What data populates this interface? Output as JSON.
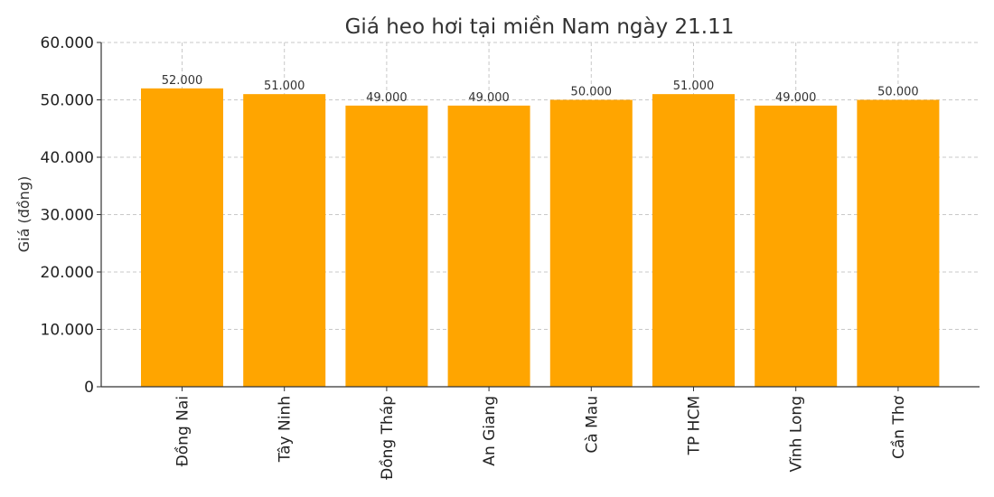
{
  "chart_data": {
    "type": "bar",
    "title": "Giá heo hơi tại miền Nam ngày 21.11",
    "xlabel": "",
    "ylabel": "Giá (đồng)",
    "ylim": [
      0,
      60000
    ],
    "yticks": [
      0,
      10000,
      20000,
      30000,
      40000,
      50000,
      60000
    ],
    "ytick_labels": [
      "0",
      "10.000",
      "20.000",
      "30.000",
      "40.000",
      "50.000",
      "60.000"
    ],
    "categories": [
      "Đồng Nai",
      "Tây Ninh",
      "Đồng Tháp",
      "An Giang",
      "Cà Mau",
      "TP HCM",
      "Vĩnh Long",
      "Cần Thơ"
    ],
    "values": [
      52000,
      51000,
      49000,
      49000,
      50000,
      51000,
      49000,
      50000
    ],
    "data_labels": [
      "52.000",
      "51.000",
      "49.000",
      "49.000",
      "50.000",
      "51.000",
      "49.000",
      "50.000"
    ],
    "bar_color": "#FFA500",
    "grid": true,
    "legend": "none"
  }
}
